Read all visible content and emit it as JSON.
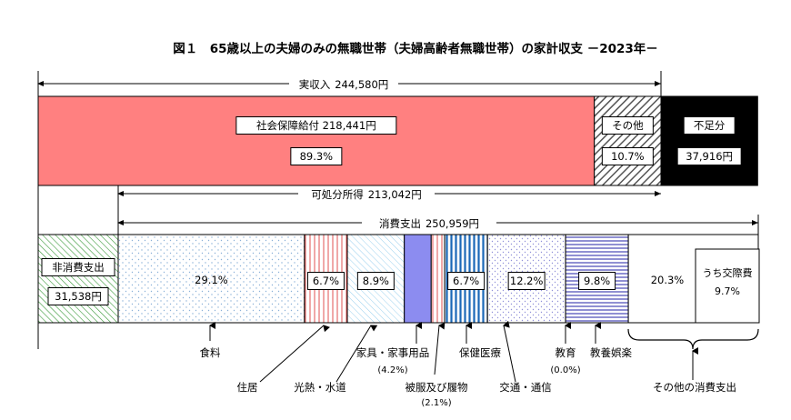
{
  "chart_data": {
    "type": "bar",
    "title": "図１　65歳以上の夫婦のみの無職世帯（夫婦高齢者無職世帯）の家計収支 －2023年－",
    "income": {
      "label": "実収入",
      "amount": "244,580円",
      "segments": [
        {
          "name": "社会保障給付",
          "amount": "218,441円",
          "percent": 89.3,
          "percent_label": "89.3%",
          "color": "#ff8080"
        },
        {
          "name": "その他",
          "amount": "",
          "percent": 10.7,
          "percent_label": "10.7%",
          "color": "#666666"
        }
      ],
      "deficit": {
        "name": "不足分",
        "amount": "37,916円",
        "color": "#000000"
      }
    },
    "disposable": {
      "label": "可処分所得",
      "amount": "213,042円"
    },
    "consumption": {
      "label": "消費支出",
      "amount": "250,959円"
    },
    "non_consumption": {
      "name": "非消費支出",
      "amount": "31,538円",
      "color": "#3a9a3a"
    },
    "expenditure": [
      {
        "name": "食料",
        "percent": 29.1,
        "percent_label": "29.1%",
        "color": "#8ab0d8"
      },
      {
        "name": "住居",
        "percent": 6.7,
        "percent_label": "6.7%",
        "color": "#e05050"
      },
      {
        "name": "光熱・水道",
        "percent": 8.9,
        "percent_label": "8.9%",
        "color": "#40a8d8"
      },
      {
        "name": "家具・家事用品",
        "percent": 4.2,
        "percent_label": "(4.2%)",
        "color": "#8c8cf0"
      },
      {
        "name": "被服及び履物",
        "percent": 2.1,
        "percent_label": "(2.1%)",
        "color": "#e05050"
      },
      {
        "name": "保健医療",
        "percent": 6.7,
        "percent_label": "6.7%",
        "color": "#2a78c0"
      },
      {
        "name": "交通・通信",
        "percent": 12.2,
        "percent_label": "12.2%",
        "color": "#9090d8"
      },
      {
        "name": "教育",
        "percent": 0.0,
        "percent_label": "(0.0%)",
        "color": "#ffffff"
      },
      {
        "name": "教養娯楽",
        "percent": 9.8,
        "percent_label": "9.8%",
        "color": "#7070c8"
      },
      {
        "name": "その他の消費支出",
        "percent": 20.3,
        "percent_label": "20.3%",
        "color": "#ffffff"
      }
    ],
    "sub_item": {
      "name": "うち交際費",
      "percent": 9.7,
      "percent_label": "9.7%"
    }
  }
}
